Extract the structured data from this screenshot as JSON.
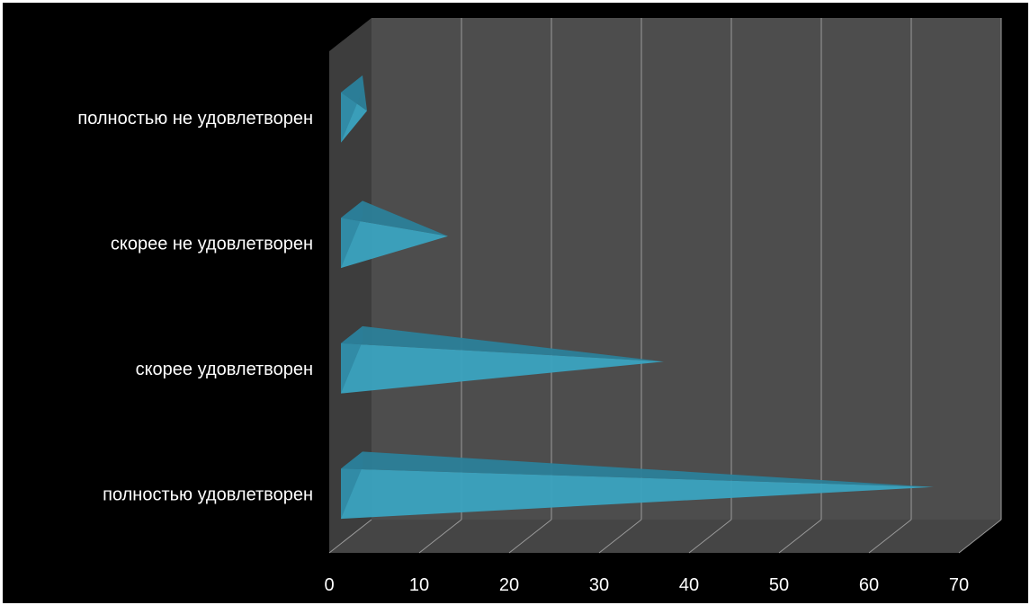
{
  "chart_data": {
    "type": "bar",
    "style": "3d-pyramid-horizontal",
    "categories": [
      "полностью не удовлетворен",
      "скорее не удовлетворен",
      "скорее удовлетворен",
      "полностью удовлетворен"
    ],
    "values": [
      3,
      12,
      36,
      66
    ],
    "xlim": [
      0,
      70
    ],
    "xticks": [
      "0",
      "10",
      "20",
      "30",
      "40",
      "50",
      "60",
      "70"
    ],
    "grid": true,
    "legend": "none",
    "colors": {
      "background": "#000000",
      "back_wall": "#4d4d4d",
      "side_wall": "#3d3d3d",
      "floor": "#454545",
      "gridline": "#9a9a9a",
      "bar": "#3aa3c0",
      "bar_dark": "#2b7f99",
      "text": "#ffffff"
    }
  }
}
